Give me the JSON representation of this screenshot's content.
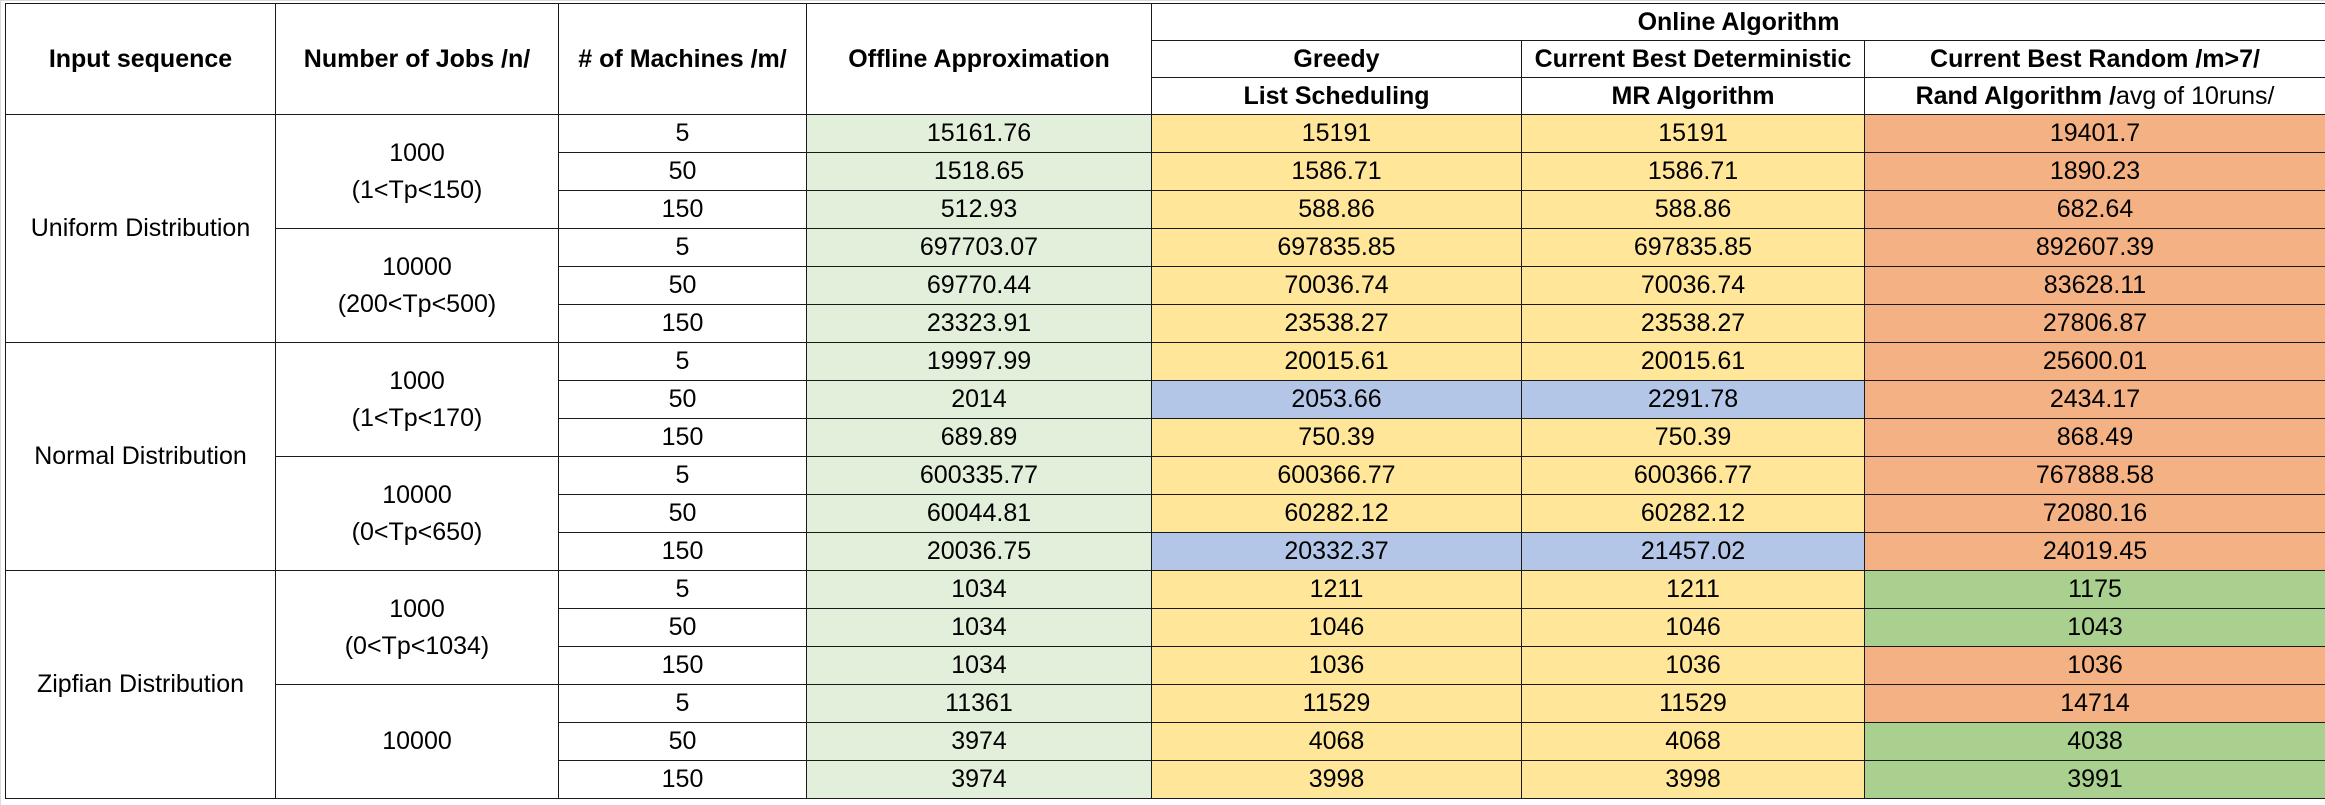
{
  "headers": {
    "input_sequence": "Input sequence",
    "num_jobs": "Number of Jobs /n/",
    "num_machines": "# of Machines /m/",
    "offline": "Offline Approximation",
    "online_group": "Online Algorithm",
    "greedy_top": "Greedy",
    "greedy_bottom": "List Scheduling",
    "det_top": "Current Best Deterministic",
    "det_bottom": "MR Algorithm",
    "rand_top": "Current Best Random /m>7/",
    "rand_bottom_bold": "Rand Algorithm /",
    "rand_bottom_normal": "avg of 10runs/"
  },
  "groups": [
    {
      "distribution": "Uniform Distribution",
      "blocks": [
        {
          "jobs": "1000",
          "range": "(1<Tp<150)",
          "rows": [
            {
              "machines": "5",
              "offline": "15161.76",
              "greedy": "15191",
              "mr": "15191",
              "rand": "19401.7"
            },
            {
              "machines": "50",
              "offline": "1518.65",
              "greedy": "1586.71",
              "mr": "1586.71",
              "rand": "1890.23"
            },
            {
              "machines": "150",
              "offline": "512.93",
              "greedy": "588.86",
              "mr": "588.86",
              "rand": "682.64"
            }
          ]
        },
        {
          "jobs": "10000",
          "range": "(200<Tp<500)",
          "rows": [
            {
              "machines": "5",
              "offline": "697703.07",
              "greedy": "697835.85",
              "mr": "697835.85",
              "rand": "892607.39"
            },
            {
              "machines": "50",
              "offline": "69770.44",
              "greedy": "70036.74",
              "mr": "70036.74",
              "rand": "83628.11"
            },
            {
              "machines": "150",
              "offline": "23323.91",
              "greedy": "23538.27",
              "mr": "23538.27",
              "rand": "27806.87"
            }
          ]
        }
      ]
    },
    {
      "distribution": "Normal Distribution",
      "blocks": [
        {
          "jobs": "1000",
          "range": "(1<Tp<170)",
          "rows": [
            {
              "machines": "5",
              "offline": "19997.99",
              "greedy": "20015.61",
              "mr": "20015.61",
              "rand": "25600.01"
            },
            {
              "machines": "50",
              "offline": "2014",
              "greedy": "2053.66",
              "mr": "2291.78",
              "rand": "2434.17"
            },
            {
              "machines": "150",
              "offline": "689.89",
              "greedy": "750.39",
              "mr": "750.39",
              "rand": "868.49"
            }
          ]
        },
        {
          "jobs": "10000",
          "range": "(0<Tp<650)",
          "rows": [
            {
              "machines": "5",
              "offline": "600335.77",
              "greedy": "600366.77",
              "mr": "600366.77",
              "rand": "767888.58"
            },
            {
              "machines": "50",
              "offline": "60044.81",
              "greedy": "60282.12",
              "mr": "60282.12",
              "rand": "72080.16"
            },
            {
              "machines": "150",
              "offline": "20036.75",
              "greedy": "20332.37",
              "mr": "21457.02",
              "rand": "24019.45"
            }
          ]
        }
      ]
    },
    {
      "distribution": "Zipfian Distribution",
      "blocks": [
        {
          "jobs": "1000",
          "range": "(0<Tp<1034)",
          "rows": [
            {
              "machines": "5",
              "offline": "1034",
              "greedy": "1211",
              "mr": "1211",
              "rand": "1175"
            },
            {
              "machines": "50",
              "offline": "1034",
              "greedy": "1046",
              "mr": "1046",
              "rand": "1043"
            },
            {
              "machines": "150",
              "offline": "1034",
              "greedy": "1036",
              "mr": "1036",
              "rand": "1036"
            }
          ]
        },
        {
          "jobs": "10000",
          "range": "",
          "rows": [
            {
              "machines": "5",
              "offline": "11361",
              "greedy": "11529",
              "mr": "11529",
              "rand": "14714"
            },
            {
              "machines": "50",
              "offline": "3974",
              "greedy": "4068",
              "mr": "4068",
              "rand": "4038"
            },
            {
              "machines": "150",
              "offline": "3974",
              "greedy": "3998",
              "mr": "3998",
              "rand": "3991"
            }
          ]
        }
      ]
    }
  ],
  "cell_colors": {
    "offline": "#e2efda",
    "online_default": "#ffe699",
    "online_highlight": "#b4c6e7",
    "rand_worse": "#f4b183",
    "rand_better": "#a9d08e"
  }
}
